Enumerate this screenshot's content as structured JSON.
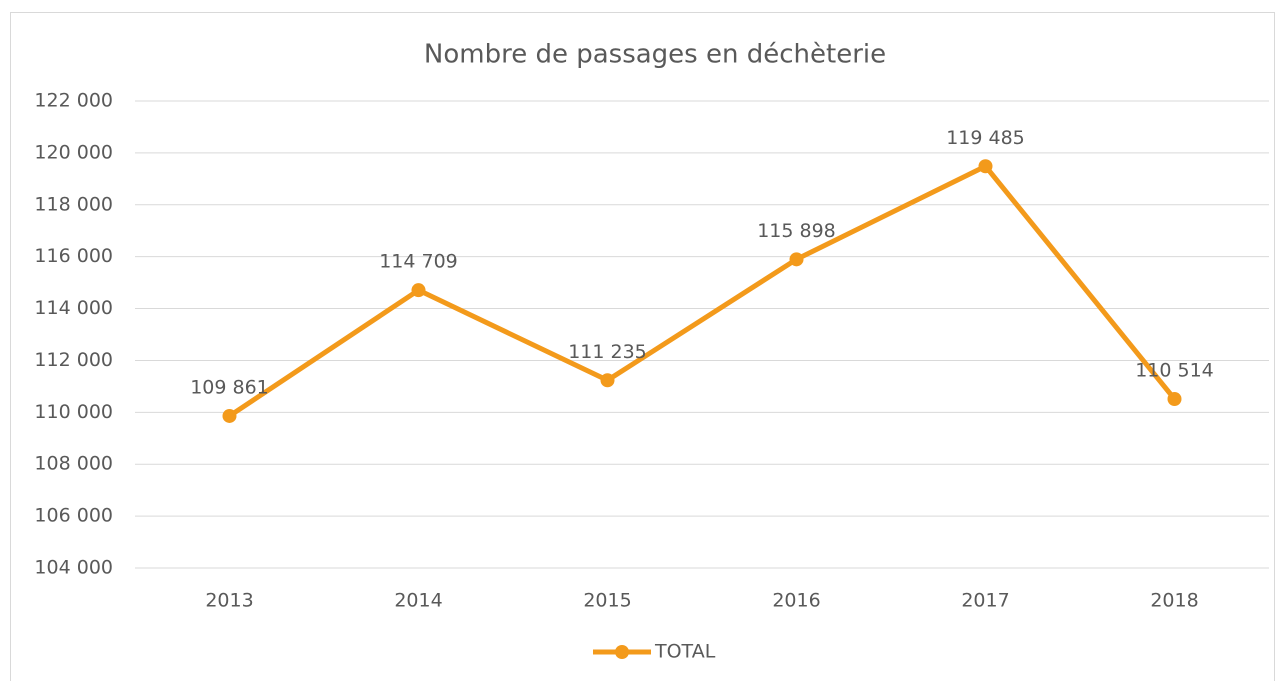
{
  "chart_data": {
    "type": "line",
    "title": "Nombre de passages en déchèterie",
    "categories": [
      "2013",
      "2014",
      "2015",
      "2016",
      "2017",
      "2018"
    ],
    "series": [
      {
        "name": "TOTAL",
        "color": "#f39a1b",
        "values": [
          109861,
          114709,
          111235,
          115898,
          119485,
          110514
        ],
        "value_labels": [
          "109 861",
          "114 709",
          "111 235",
          "115 898",
          "119 485",
          "110 514"
        ]
      }
    ],
    "ylim": [
      104000,
      122000
    ],
    "yticks": [
      {
        "value": 104000,
        "label": "104 000"
      },
      {
        "value": 106000,
        "label": "106 000"
      },
      {
        "value": 108000,
        "label": "108 000"
      },
      {
        "value": 110000,
        "label": "110 000"
      },
      {
        "value": 112000,
        "label": "112 000"
      },
      {
        "value": 114000,
        "label": "114 000"
      },
      {
        "value": 116000,
        "label": "116 000"
      },
      {
        "value": 118000,
        "label": "118 000"
      },
      {
        "value": 120000,
        "label": "120 000"
      },
      {
        "value": 122000,
        "label": "122 000"
      }
    ],
    "grid": true,
    "legend": "bottom"
  }
}
